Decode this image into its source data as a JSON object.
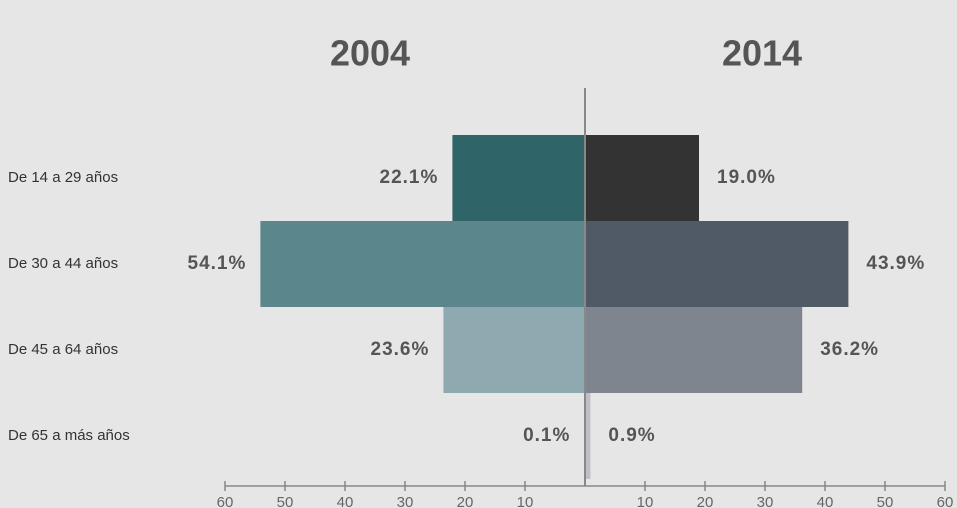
{
  "chart_data": {
    "type": "butterfly",
    "categories": [
      "De 14 a 29 años",
      "De 30 a 44 años",
      "De 45 a 64 años",
      "De 65 a más años"
    ],
    "series": [
      {
        "name": "2004",
        "side": "left",
        "colors": [
          "#2f6568",
          "#5b868c",
          "#8fa9b0",
          "#5fb0b0"
        ],
        "values": [
          22.1,
          54.1,
          23.6,
          0.1
        ],
        "value_labels": [
          "22.1%",
          "54.1%",
          "23.6%",
          "0.1%"
        ]
      },
      {
        "name": "2014",
        "side": "right",
        "colors": [
          "#333333",
          "#4f5a66",
          "#7f858e",
          "#c0c0c4"
        ],
        "values": [
          19.0,
          43.9,
          36.2,
          0.9
        ],
        "value_labels": [
          "19.0%",
          "43.9%",
          "36.2%",
          "0.9%"
        ]
      }
    ],
    "xlim": [
      0,
      60
    ],
    "xticks": [
      10,
      20,
      30,
      40,
      50,
      60
    ]
  }
}
